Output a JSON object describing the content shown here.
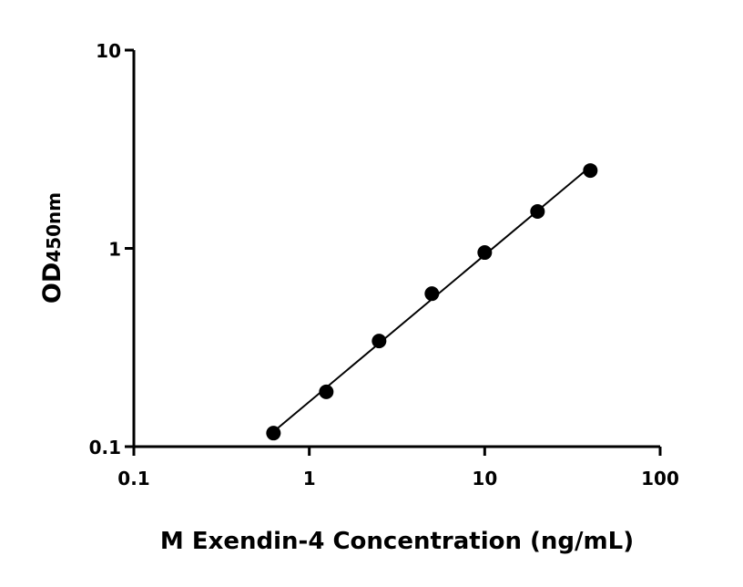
{
  "chart_data": {
    "type": "scatter",
    "title": "",
    "xlabel": "M Exendin-4 Concentration (ng/mL)",
    "ylabel_main": "OD",
    "ylabel_sub": "450nm",
    "xscale": "log",
    "yscale": "log",
    "xlim": [
      0.1,
      100
    ],
    "ylim": [
      0.1,
      10
    ],
    "xticks": [
      0.1,
      1,
      10,
      100
    ],
    "xtick_labels": [
      "0.1",
      "1",
      "10",
      "100"
    ],
    "yticks": [
      0.1,
      1,
      10
    ],
    "ytick_labels": [
      "0.1",
      "1",
      "10"
    ],
    "grid": false,
    "fit_line": true,
    "marker_color": "#000000",
    "line_color": "#000000",
    "x": [
      0.625,
      1.25,
      2.5,
      5,
      10,
      20,
      40
    ],
    "y": [
      0.117,
      0.189,
      0.341,
      0.591,
      0.953,
      1.535,
      2.47
    ]
  }
}
